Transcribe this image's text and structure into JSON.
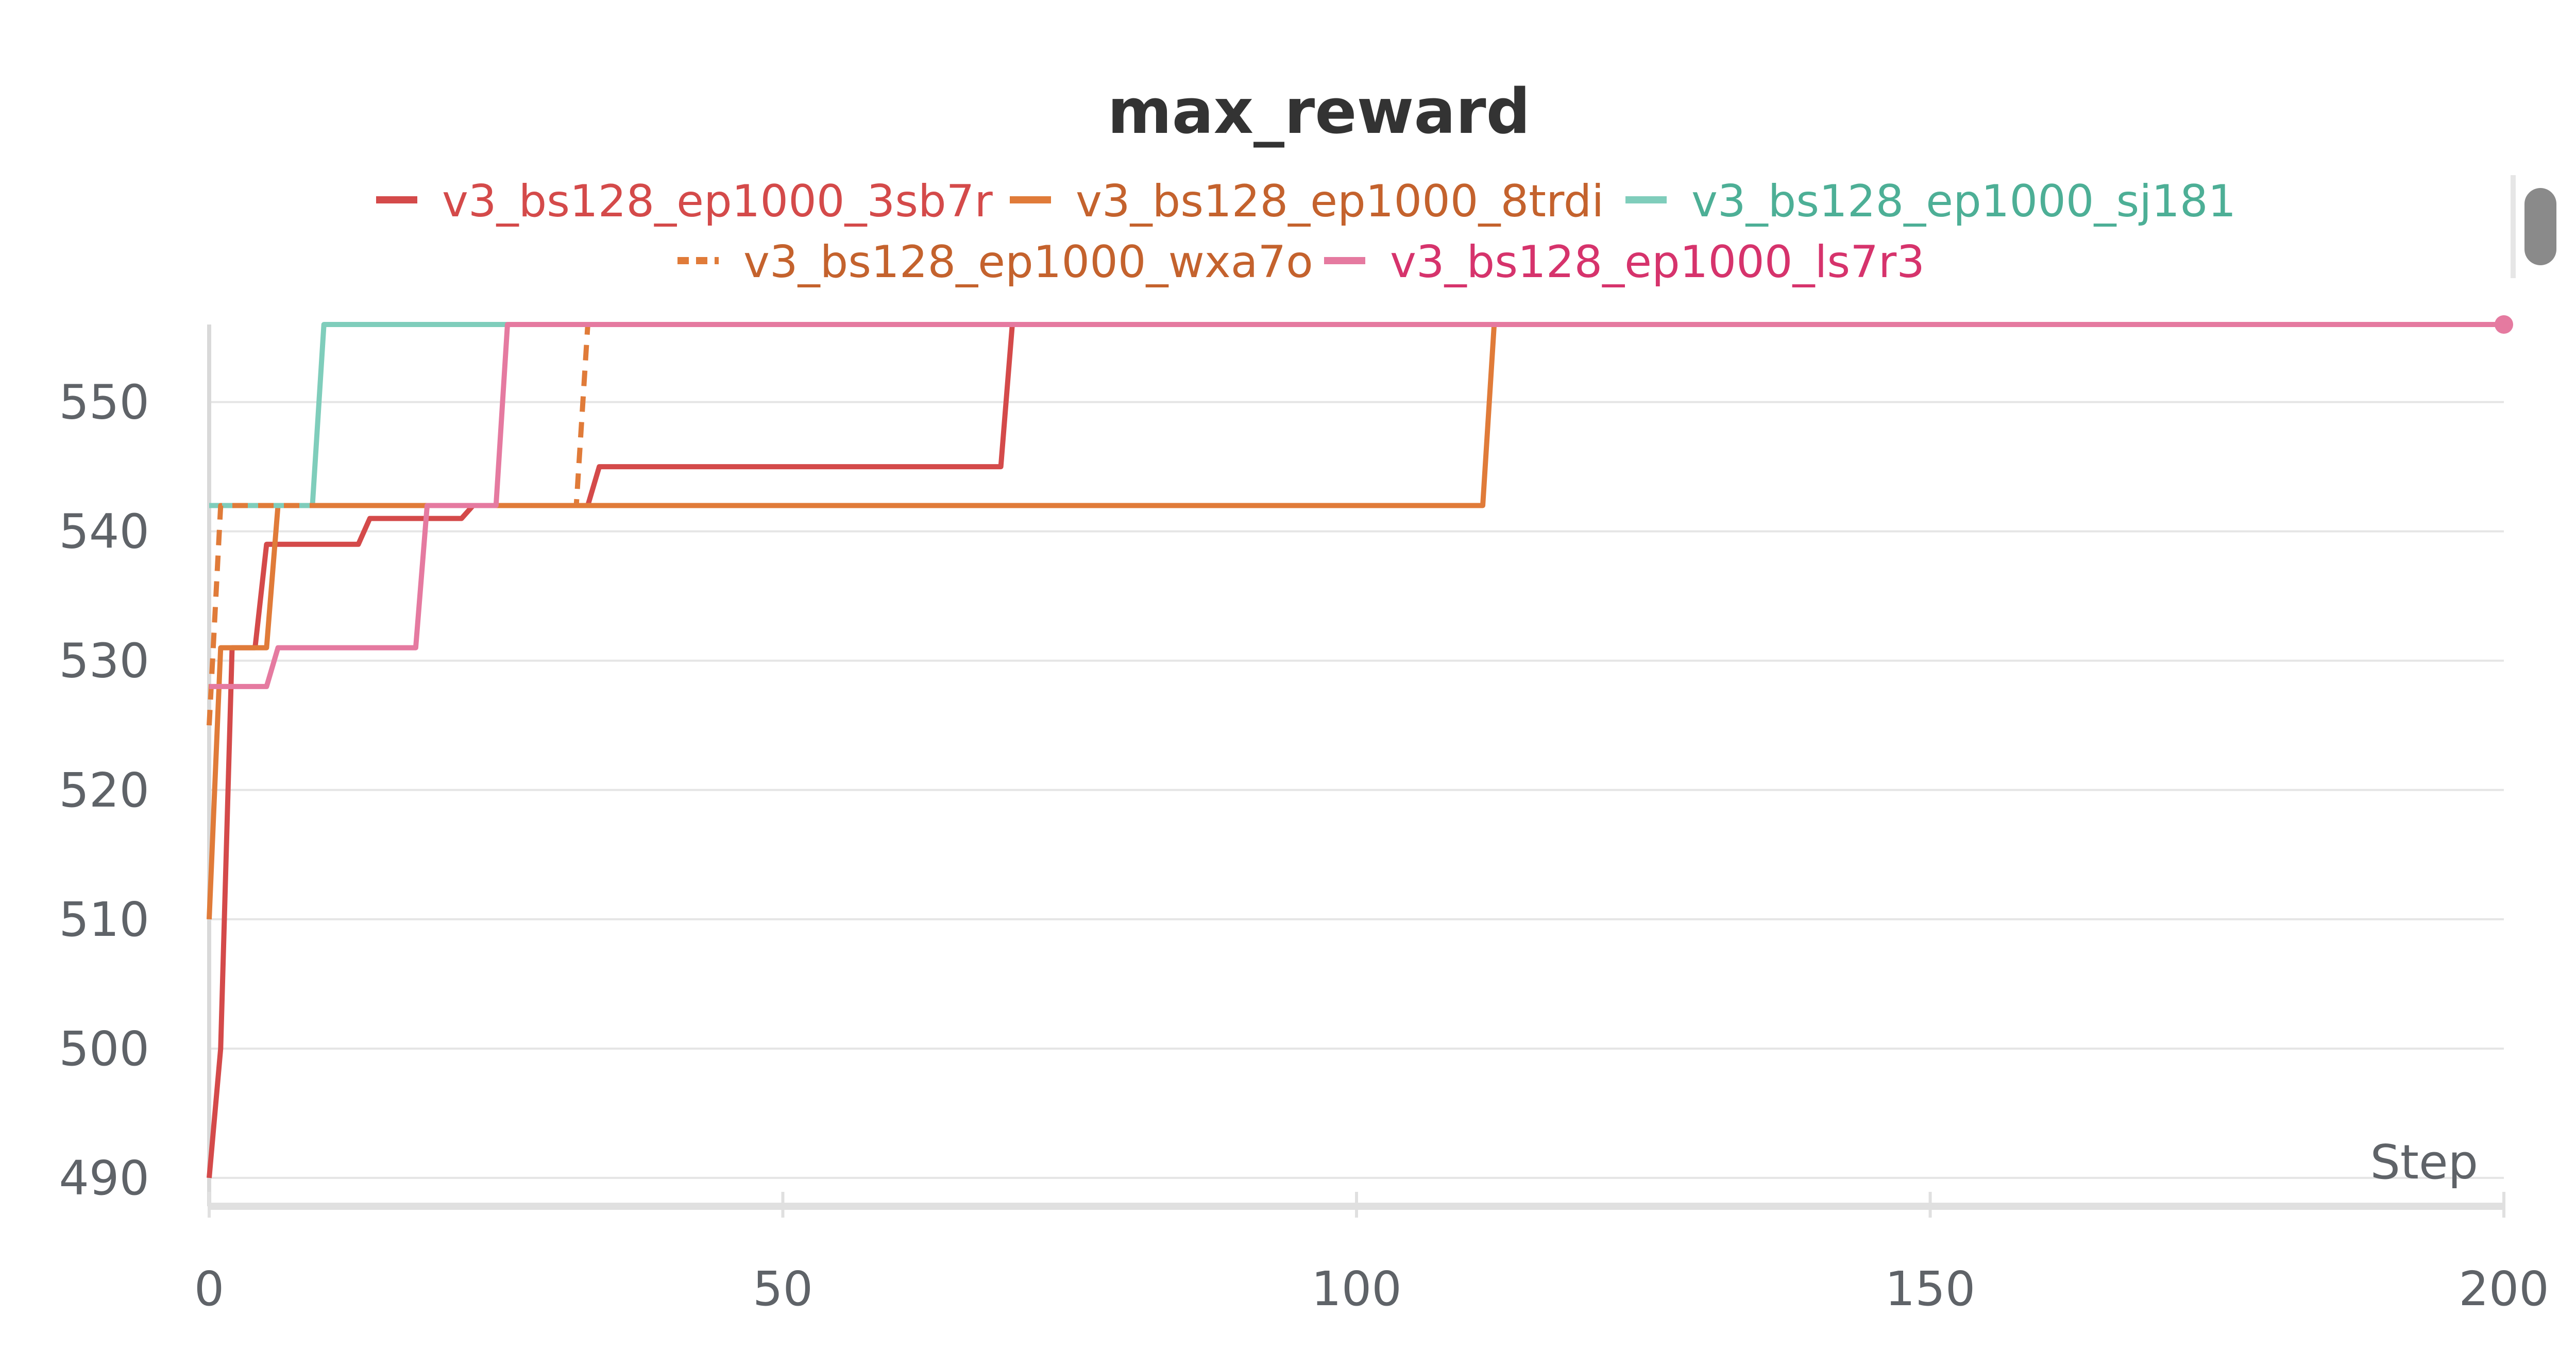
{
  "chart_data": {
    "type": "line",
    "title": "max_reward",
    "xlabel": "Step",
    "ylabel": "",
    "xlim": [
      0,
      200
    ],
    "ylim": [
      489,
      556
    ],
    "xticks": [
      0,
      50,
      100,
      150,
      200
    ],
    "yticks": [
      490,
      500,
      510,
      520,
      530,
      540,
      550
    ],
    "grid": true,
    "legend_position": "top",
    "series": [
      {
        "name": "v3_bs128_ep1000_3sb7r",
        "color": "#d44a4a",
        "text_color": "#d44a4a",
        "dash": "solid",
        "points": [
          [
            0,
            490
          ],
          [
            1,
            500
          ],
          [
            2,
            531
          ],
          [
            4,
            531
          ],
          [
            5,
            539
          ],
          [
            6,
            539
          ],
          [
            13,
            539
          ],
          [
            14,
            541
          ],
          [
            22,
            541
          ],
          [
            23,
            542
          ],
          [
            33,
            542
          ],
          [
            34,
            545
          ],
          [
            69,
            545
          ],
          [
            70,
            556
          ],
          [
            200,
            556
          ]
        ]
      },
      {
        "name": "v3_bs128_ep1000_8trdi",
        "color": "#e07b39",
        "text_color": "#c4622d",
        "dash": "solid",
        "points": [
          [
            0,
            510
          ],
          [
            1,
            531
          ],
          [
            5,
            531
          ],
          [
            6,
            542
          ],
          [
            111,
            542
          ],
          [
            112,
            556
          ],
          [
            200,
            556
          ]
        ]
      },
      {
        "name": "v3_bs128_ep1000_sj181",
        "color": "#7fcdbb",
        "text_color": "#4daf96",
        "dash": "solid",
        "points": [
          [
            0,
            542
          ],
          [
            9,
            542
          ],
          [
            10,
            556
          ],
          [
            200,
            556
          ]
        ]
      },
      {
        "name": "v3_bs128_ep1000_wxa7o",
        "color": "#e07b39",
        "text_color": "#c4622d",
        "dash": "dashed",
        "points": [
          [
            0,
            525
          ],
          [
            1,
            542
          ],
          [
            32,
            542
          ],
          [
            33,
            556
          ],
          [
            200,
            556
          ]
        ]
      },
      {
        "name": "v3_bs128_ep1000_ls7r3",
        "color": "#e57aa0",
        "text_color": "#d6336c",
        "dash": "solid",
        "points": [
          [
            0,
            528
          ],
          [
            1,
            528
          ],
          [
            5,
            528
          ],
          [
            6,
            531
          ],
          [
            8,
            531
          ],
          [
            18,
            531
          ],
          [
            19,
            542
          ],
          [
            25,
            542
          ],
          [
            26,
            556
          ],
          [
            200,
            556
          ]
        ]
      }
    ]
  }
}
